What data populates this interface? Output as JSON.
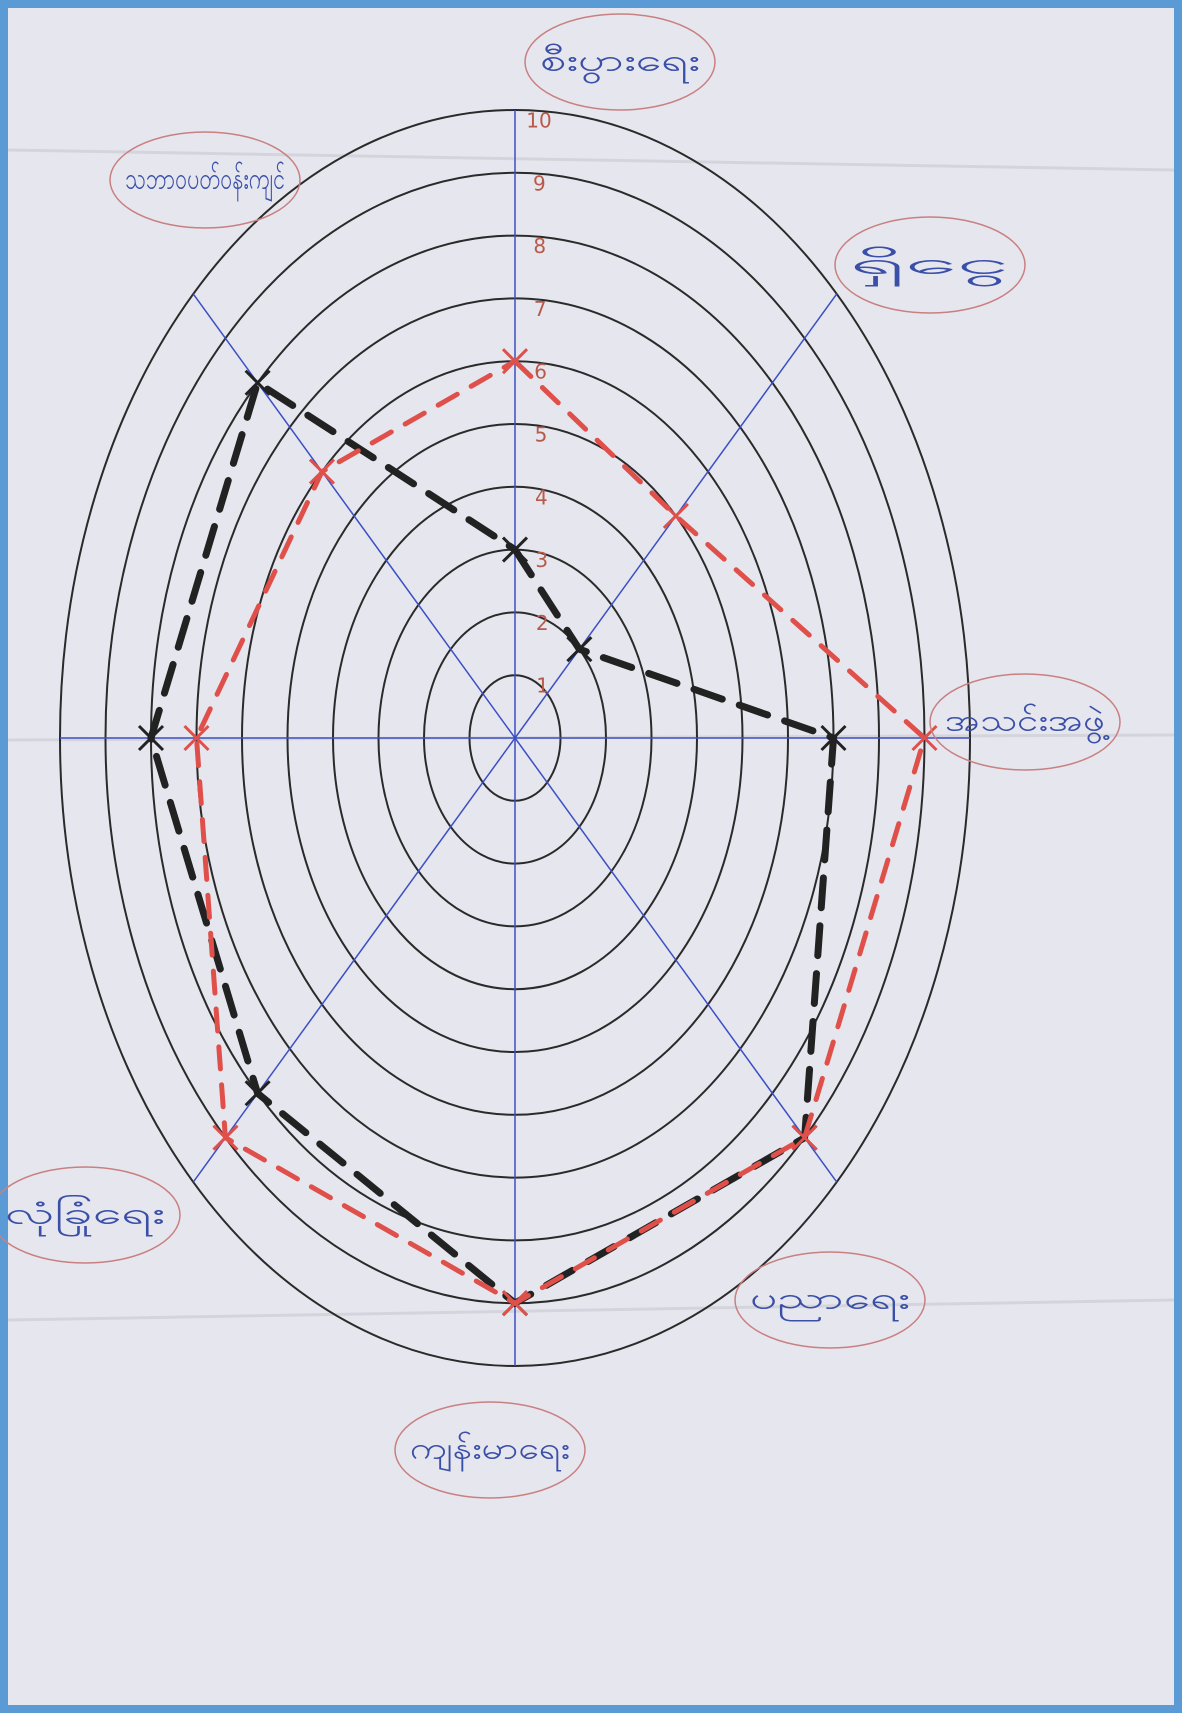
{
  "chart_data": {
    "type": "radar",
    "categories": [
      "စီးပွားရေး",
      "ရှိငွေ",
      "အသင်းအဖွဲ့",
      "ပညာရေး",
      "ကျန်းမာရေး",
      "လုံခြုံရေး",
      null,
      "သဘာဝပတ်ဝန်းကျင်"
    ],
    "series": [
      {
        "color": "#222222",
        "values": [
          3,
          2,
          7,
          9,
          9,
          8,
          8,
          8
        ]
      },
      {
        "color": "#e0504a",
        "values": [
          6,
          5,
          9,
          9,
          9,
          9,
          7,
          6
        ]
      }
    ],
    "ylim": [
      0,
      10
    ],
    "yticks": [
      1,
      2,
      3,
      4,
      5,
      6,
      7,
      8,
      9,
      10
    ],
    "grid": true
  }
}
